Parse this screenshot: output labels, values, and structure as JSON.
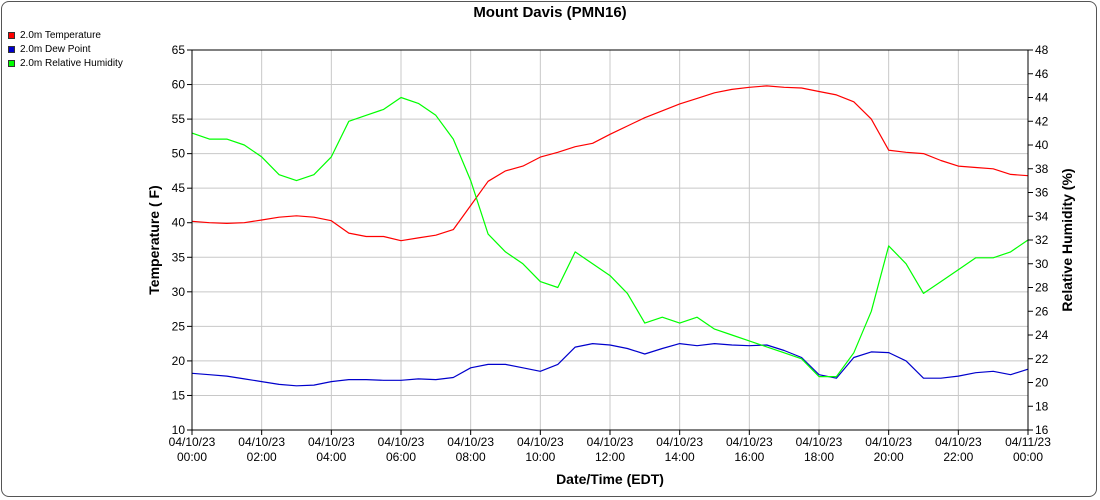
{
  "chart_data": {
    "type": "line",
    "title": "Mount Davis (PMN16)",
    "xlabel": "Date/Time (EDT)",
    "ylabel_left": "Temperature ( F)",
    "ylabel_right": "Relative Humidity (%)",
    "ylim_left": [
      10,
      65
    ],
    "ylim_right": [
      16,
      48
    ],
    "xlim_hours": [
      0,
      24
    ],
    "grid": true,
    "legend_position": "top-left",
    "x_ticks": [
      {
        "date": "04/10/23",
        "time": "00:00"
      },
      {
        "date": "04/10/23",
        "time": "02:00"
      },
      {
        "date": "04/10/23",
        "time": "04:00"
      },
      {
        "date": "04/10/23",
        "time": "06:00"
      },
      {
        "date": "04/10/23",
        "time": "08:00"
      },
      {
        "date": "04/10/23",
        "time": "10:00"
      },
      {
        "date": "04/10/23",
        "time": "12:00"
      },
      {
        "date": "04/10/23",
        "time": "14:00"
      },
      {
        "date": "04/10/23",
        "time": "16:00"
      },
      {
        "date": "04/10/23",
        "time": "18:00"
      },
      {
        "date": "04/10/23",
        "time": "20:00"
      },
      {
        "date": "04/10/23",
        "time": "22:00"
      },
      {
        "date": "04/11/23",
        "time": "00:00"
      }
    ],
    "y_ticks_left": [
      10,
      15,
      20,
      25,
      30,
      35,
      40,
      45,
      50,
      55,
      60,
      65
    ],
    "y_ticks_right": [
      16,
      18,
      20,
      22,
      24,
      26,
      28,
      30,
      32,
      34,
      36,
      38,
      40,
      42,
      44,
      46,
      48
    ],
    "series": [
      {
        "name": "2.0m Temperature",
        "color": "#ff0000",
        "axis": "left",
        "x": [
          0,
          0.5,
          1,
          1.5,
          2,
          2.5,
          3,
          3.5,
          4,
          4.5,
          5,
          5.5,
          6,
          6.5,
          7,
          7.5,
          8,
          8.5,
          9,
          9.5,
          10,
          10.5,
          11,
          11.5,
          12,
          12.5,
          13,
          13.5,
          14,
          14.5,
          15,
          15.5,
          16,
          16.5,
          17,
          17.5,
          18,
          18.5,
          19,
          19.5,
          20,
          20.5,
          21,
          21.5,
          22,
          22.5,
          23,
          23.5,
          24
        ],
        "y": [
          40.2,
          40.0,
          39.9,
          40.0,
          40.4,
          40.8,
          41.0,
          40.8,
          40.3,
          38.5,
          38.0,
          38.0,
          37.4,
          37.8,
          38.2,
          39.0,
          42.5,
          46.0,
          47.5,
          48.2,
          49.5,
          50.2,
          51.0,
          51.5,
          52.8,
          54.0,
          55.2,
          56.2,
          57.2,
          58.0,
          58.8,
          59.3,
          59.6,
          59.8,
          59.6,
          59.5,
          59.0,
          58.5,
          57.5,
          55.0,
          50.5,
          50.2,
          50.0,
          49.0,
          48.2,
          48.0,
          47.8,
          47.0,
          46.8
        ]
      },
      {
        "name": "2.0m Dew Point",
        "color": "#0000cc",
        "axis": "left",
        "x": [
          0,
          0.5,
          1,
          1.5,
          2,
          2.5,
          3,
          3.5,
          4,
          4.5,
          5,
          5.5,
          6,
          6.5,
          7,
          7.5,
          8,
          8.5,
          9,
          9.5,
          10,
          10.5,
          11,
          11.5,
          12,
          12.5,
          13,
          13.5,
          14,
          14.5,
          15,
          15.5,
          16,
          16.5,
          17,
          17.5,
          18,
          18.5,
          19,
          19.5,
          20,
          20.5,
          21,
          21.5,
          22,
          22.5,
          23,
          23.5,
          24
        ],
        "y": [
          18.2,
          18.0,
          17.8,
          17.4,
          17.0,
          16.6,
          16.4,
          16.5,
          17.0,
          17.3,
          17.3,
          17.2,
          17.2,
          17.4,
          17.3,
          17.6,
          19.0,
          19.5,
          19.5,
          19.0,
          18.5,
          19.5,
          22.0,
          22.5,
          22.3,
          21.8,
          21.0,
          21.8,
          22.5,
          22.2,
          22.5,
          22.3,
          22.2,
          22.3,
          21.5,
          20.5,
          18.0,
          17.5,
          20.5,
          21.3,
          21.2,
          20.0,
          17.5,
          17.5,
          17.8,
          18.3,
          18.5,
          18.0,
          18.8
        ]
      },
      {
        "name": "2.0m Relative Humidity",
        "color": "#00ff00",
        "axis": "right",
        "x": [
          0,
          0.5,
          1,
          1.5,
          2,
          2.5,
          3,
          3.5,
          4,
          4.5,
          5,
          5.5,
          6,
          6.5,
          7,
          7.5,
          8,
          8.5,
          9,
          9.5,
          10,
          10.5,
          11,
          11.5,
          12,
          12.5,
          13,
          13.5,
          14,
          14.5,
          15,
          15.5,
          16,
          16.5,
          17,
          17.5,
          18,
          18.5,
          19,
          19.5,
          20,
          20.5,
          21,
          21.5,
          22,
          22.5,
          23,
          23.5,
          24
        ],
        "y": [
          41.0,
          40.5,
          40.5,
          40.0,
          39.0,
          37.5,
          37.0,
          37.5,
          39.0,
          42.0,
          42.5,
          43.0,
          44.0,
          43.5,
          42.5,
          40.5,
          37.0,
          32.5,
          31.0,
          30.0,
          28.5,
          28.0,
          31.0,
          30.0,
          29.0,
          27.5,
          25.0,
          25.5,
          25.0,
          25.5,
          24.5,
          24.0,
          23.5,
          23.0,
          22.5,
          22.0,
          20.5,
          20.5,
          22.5,
          26.0,
          31.5,
          30.0,
          27.5,
          28.5,
          29.5,
          30.5,
          30.5,
          31.0,
          32.0
        ]
      }
    ]
  }
}
